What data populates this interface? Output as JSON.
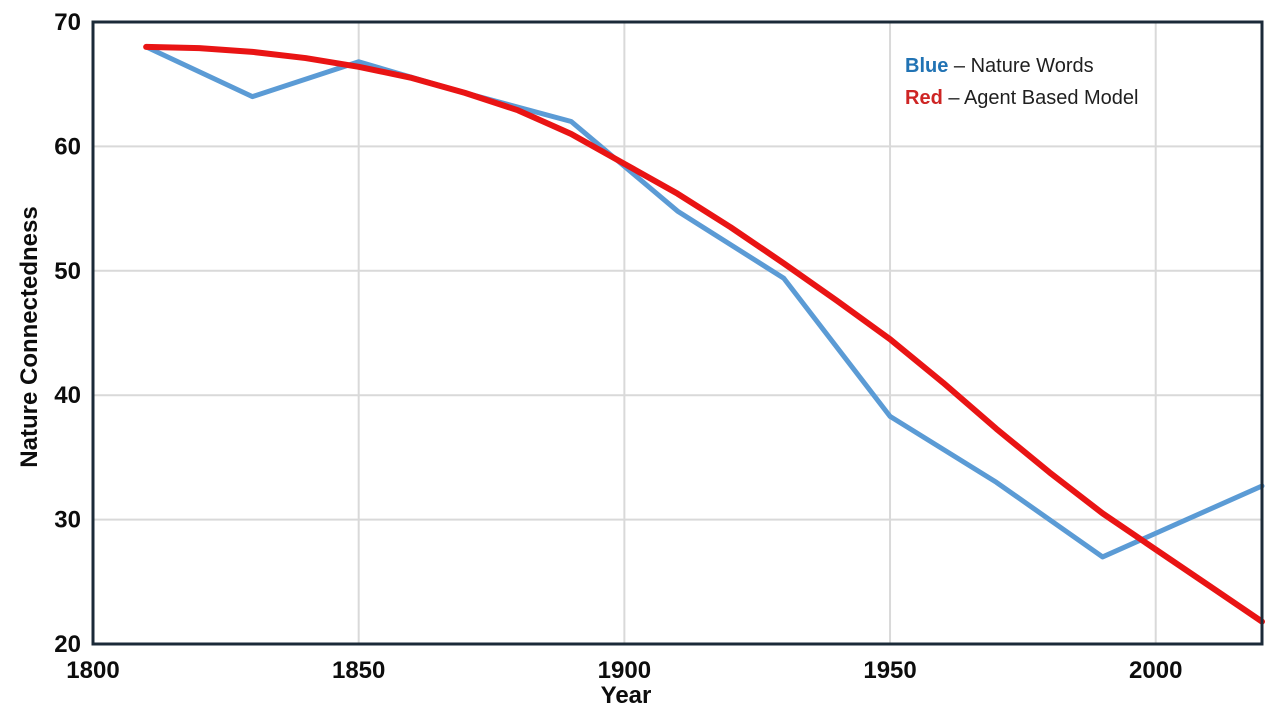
{
  "chart_data": {
    "type": "line",
    "title": "",
    "xlabel": "Year",
    "ylabel": "Nature Connectedness",
    "xlim": [
      1800,
      2020
    ],
    "ylim": [
      20,
      70
    ],
    "xticks": [
      1800,
      1850,
      1900,
      1950,
      2000
    ],
    "yticks": [
      20,
      30,
      40,
      50,
      60,
      70
    ],
    "grid": true,
    "colors": {
      "grid": "#D9D9D9",
      "axis": "#1B2A38",
      "tick_label": "#0D0D0D",
      "background": "#FFFFFF"
    },
    "legend": {
      "position": "top-right",
      "items": [
        {
          "color_word": "Blue",
          "separator": " – ",
          "label": "Nature Words",
          "color": "#2173B4"
        },
        {
          "color_word": "Red",
          "separator": " – ",
          "label": "Agent Based Model",
          "color": "#CE2524"
        }
      ]
    },
    "series": [
      {
        "name": "Nature Words",
        "color": "#5B9BD5",
        "width": 5,
        "x": [
          1810,
          1830,
          1850,
          1870,
          1890,
          1910,
          1930,
          1950,
          1970,
          1990,
          2020
        ],
        "y": [
          68,
          64,
          66.8,
          64.3,
          62,
          54.8,
          49.4,
          38.3,
          33,
          27,
          32.7
        ]
      },
      {
        "name": "Agent Based Model",
        "color": "#E91414",
        "width": 6,
        "x": [
          1810,
          1820,
          1830,
          1840,
          1850,
          1860,
          1870,
          1880,
          1890,
          1900,
          1910,
          1920,
          1930,
          1940,
          1950,
          1960,
          1970,
          1980,
          1990,
          2000,
          2010,
          2020
        ],
        "y": [
          68,
          67.9,
          67.6,
          67.1,
          66.4,
          65.5,
          64.3,
          62.9,
          61.0,
          58.6,
          56.2,
          53.5,
          50.6,
          47.6,
          44.5,
          41.0,
          37.3,
          33.8,
          30.5,
          27.6,
          24.7,
          21.8
        ]
      }
    ]
  }
}
